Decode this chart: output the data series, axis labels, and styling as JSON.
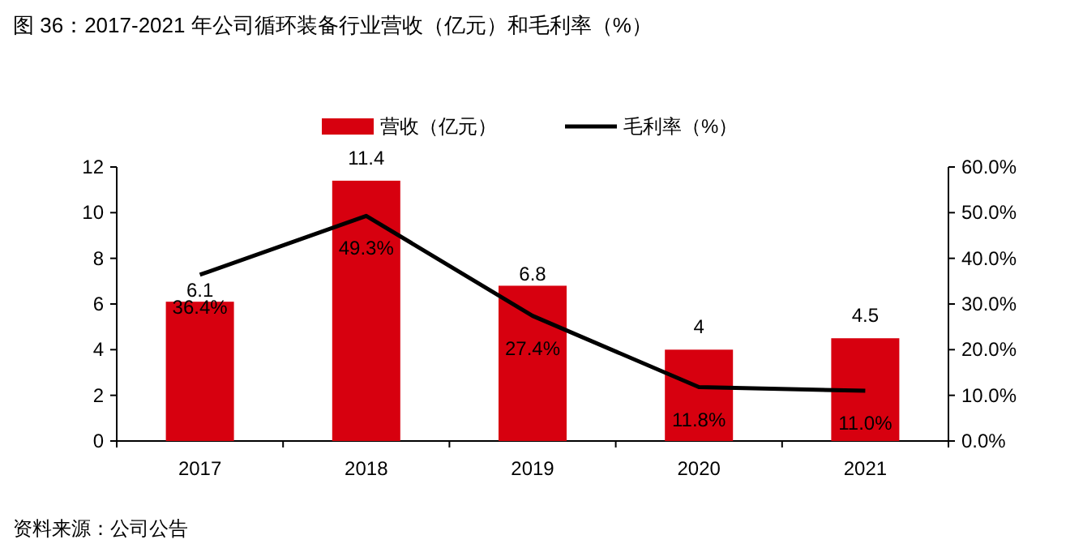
{
  "chart_data": {
    "type": "bar",
    "title": "图 36：2017-2021 年公司循环装备行业营收（亿元）和毛利率（%）",
    "categories": [
      "2017",
      "2018",
      "2019",
      "2020",
      "2021"
    ],
    "series": [
      {
        "name": "营收（亿元）",
        "color": "#d7000f",
        "values": [
          6.1,
          11.4,
          6.8,
          4,
          4.5
        ],
        "value_labels": [
          "6.1",
          "11.4",
          "6.8",
          "4",
          "4.5"
        ]
      },
      {
        "name": "毛利率（%）",
        "type": "line",
        "axis": "y2",
        "color": "#000000",
        "values": [
          36.4,
          49.3,
          27.4,
          11.8,
          11.0
        ],
        "value_labels": [
          "36.4%",
          "49.3%",
          "27.4%",
          "11.8%",
          "11.0%"
        ]
      }
    ],
    "ylim": [
      0,
      12
    ],
    "yticks": [
      0,
      2,
      4,
      6,
      8,
      10,
      12
    ],
    "y2lim": [
      0,
      60
    ],
    "y2ticks": [
      {
        "value": 0,
        "label": "0.0%"
      },
      {
        "value": 10,
        "label": "10.0%"
      },
      {
        "value": 20,
        "label": "20.0%"
      },
      {
        "value": 30,
        "label": "30.0%"
      },
      {
        "value": 40,
        "label": "40.0%"
      },
      {
        "value": 50,
        "label": "50.0%"
      },
      {
        "value": 60,
        "label": "60.0%"
      }
    ],
    "grid": false,
    "legend": "top",
    "marker": "none",
    "annotations": [
      "资料来源：公司公告"
    ]
  }
}
